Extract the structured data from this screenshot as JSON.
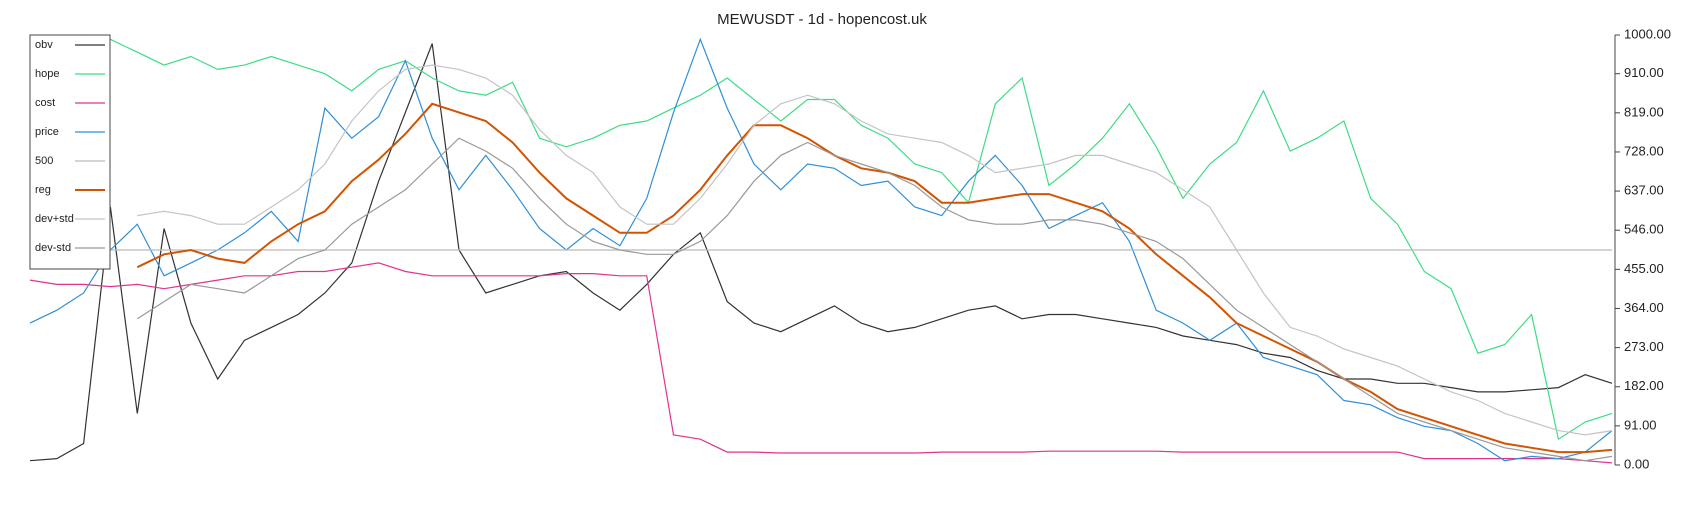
{
  "chart_data": {
    "type": "line",
    "title": "MEWUSDT - 1d - hopencost.uk",
    "ylim": [
      0,
      1000
    ],
    "yticks": [
      {
        "value": 0,
        "label": "0.00"
      },
      {
        "value": 91,
        "label": "91.00"
      },
      {
        "value": 182,
        "label": "182.00"
      },
      {
        "value": 273,
        "label": "273.00"
      },
      {
        "value": 364,
        "label": "364.00"
      },
      {
        "value": 455,
        "label": "455.00"
      },
      {
        "value": 546,
        "label": "546.00"
      },
      {
        "value": 637,
        "label": "637.00"
      },
      {
        "value": 728,
        "label": "728.00"
      },
      {
        "value": 819,
        "label": "819.00"
      },
      {
        "value": 910,
        "label": "910.00"
      },
      {
        "value": 1000,
        "label": "1000.00"
      }
    ],
    "legend": "upper left",
    "series": [
      {
        "name": "obv",
        "color": "#333333",
        "values": [
          10,
          15,
          50,
          600,
          120,
          550,
          330,
          200,
          290,
          320,
          350,
          400,
          470,
          660,
          820,
          980,
          500,
          400,
          420,
          440,
          450,
          400,
          360,
          420,
          490,
          540,
          380,
          330,
          310,
          340,
          370,
          330,
          310,
          320,
          340,
          360,
          370,
          340,
          350,
          350,
          340,
          330,
          320,
          300,
          290,
          280,
          260,
          250,
          220,
          200,
          200,
          190,
          190,
          180,
          170,
          170,
          175,
          180,
          210,
          190
        ]
      },
      {
        "name": "hope",
        "color": "#3ddc84",
        "values": [
          990,
          990,
          1000,
          990,
          960,
          930,
          950,
          920,
          930,
          950,
          930,
          910,
          870,
          920,
          940,
          900,
          870,
          860,
          890,
          760,
          740,
          760,
          790,
          800,
          830,
          860,
          900,
          850,
          800,
          850,
          850,
          790,
          760,
          700,
          680,
          610,
          840,
          900,
          650,
          700,
          760,
          840,
          740,
          620,
          700,
          750,
          870,
          730,
          760,
          800,
          620,
          560,
          450,
          410,
          260,
          280,
          350,
          60,
          100,
          120
        ]
      },
      {
        "name": "cost",
        "color": "#e0338f",
        "values": [
          430,
          420,
          420,
          415,
          420,
          410,
          420,
          430,
          440,
          440,
          450,
          450,
          460,
          470,
          450,
          440,
          440,
          440,
          440,
          440,
          445,
          445,
          440,
          440,
          70,
          60,
          30,
          30,
          28,
          28,
          28,
          28,
          28,
          28,
          30,
          30,
          30,
          30,
          32,
          32,
          32,
          32,
          32,
          30,
          30,
          30,
          30,
          30,
          30,
          30,
          30,
          30,
          15,
          15,
          15,
          15,
          15,
          15,
          10,
          5
        ]
      },
      {
        "name": "price",
        "color": "#2f8fd8",
        "values": [
          330,
          360,
          400,
          500,
          560,
          440,
          470,
          500,
          540,
          590,
          520,
          830,
          760,
          810,
          940,
          760,
          640,
          720,
          640,
          550,
          500,
          550,
          510,
          620,
          820,
          990,
          830,
          700,
          640,
          700,
          690,
          650,
          660,
          600,
          580,
          660,
          720,
          650,
          550,
          580,
          610,
          520,
          360,
          330,
          290,
          330,
          250,
          230,
          210,
          150,
          140,
          110,
          90,
          80,
          50,
          10,
          20,
          15,
          30,
          80
        ]
      },
      {
        "name": "500",
        "color": "#bbbbbb",
        "values": [
          500,
          500,
          500,
          500,
          500,
          500,
          500,
          500,
          500,
          500,
          500,
          500,
          500,
          500,
          500,
          500,
          500,
          500,
          500,
          500,
          500,
          500,
          500,
          500,
          500,
          500,
          500,
          500,
          500,
          500,
          500,
          500,
          500,
          500,
          500,
          500,
          500,
          500,
          500,
          500,
          500,
          500,
          500,
          500,
          500,
          500,
          500,
          500,
          500,
          500,
          500,
          500,
          500,
          500,
          500,
          500,
          500,
          500,
          500,
          500
        ]
      },
      {
        "name": "reg",
        "color": "#d35400",
        "width": 2,
        "values": [
          null,
          null,
          null,
          null,
          460,
          490,
          500,
          480,
          470,
          520,
          560,
          590,
          660,
          710,
          770,
          840,
          820,
          800,
          750,
          680,
          620,
          580,
          540,
          540,
          580,
          640,
          720,
          790,
          790,
          760,
          720,
          690,
          680,
          660,
          610,
          610,
          620,
          630,
          630,
          610,
          590,
          550,
          490,
          440,
          390,
          330,
          300,
          270,
          240,
          200,
          170,
          130,
          110,
          90,
          70,
          50,
          40,
          30,
          30,
          35
        ]
      },
      {
        "name": "dev+std",
        "color": "#c4c4c4",
        "values": [
          null,
          null,
          null,
          null,
          580,
          590,
          580,
          560,
          560,
          600,
          640,
          700,
          800,
          870,
          920,
          930,
          920,
          900,
          860,
          780,
          720,
          680,
          600,
          560,
          560,
          620,
          700,
          790,
          840,
          860,
          840,
          800,
          770,
          760,
          750,
          720,
          680,
          690,
          700,
          720,
          720,
          700,
          680,
          640,
          600,
          500,
          400,
          320,
          300,
          270,
          250,
          230,
          200,
          170,
          150,
          120,
          100,
          80,
          70,
          80
        ]
      },
      {
        "name": "dev-std",
        "color": "#999999",
        "values": [
          null,
          null,
          null,
          null,
          340,
          380,
          420,
          410,
          400,
          440,
          480,
          500,
          560,
          600,
          640,
          700,
          760,
          730,
          690,
          620,
          560,
          520,
          500,
          490,
          490,
          520,
          580,
          660,
          720,
          750,
          720,
          700,
          680,
          650,
          600,
          570,
          560,
          560,
          570,
          570,
          560,
          540,
          520,
          480,
          420,
          360,
          320,
          280,
          240,
          200,
          160,
          120,
          100,
          80,
          60,
          40,
          30,
          20,
          10,
          20
        ]
      }
    ]
  }
}
